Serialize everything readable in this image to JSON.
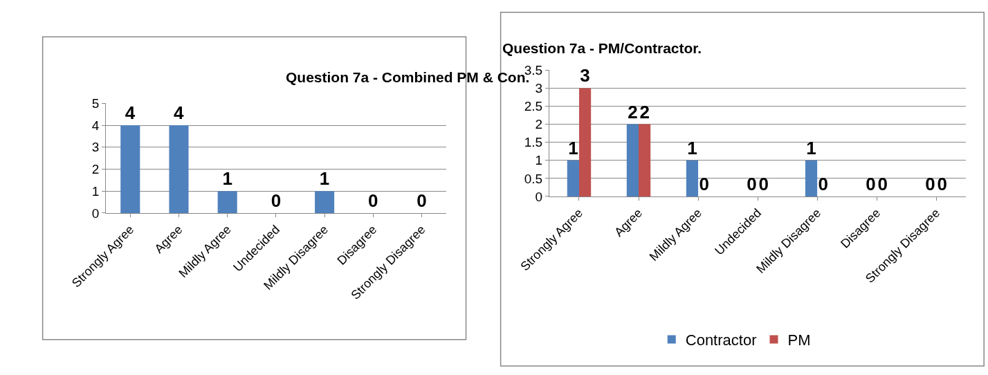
{
  "chart_data": [
    {
      "type": "bar",
      "title": "Question 7a - Combined PM & Con.",
      "categories": [
        "Strongly Agree",
        "Agree",
        "Mildly Agree",
        "Undecided",
        "Mildly Disagree",
        "Disagree",
        "Strongly Disagree"
      ],
      "values": [
        4,
        4,
        1,
        0,
        1,
        0,
        0
      ],
      "color": "#4f81bd",
      "ylim": [
        0,
        5
      ],
      "yticks": [
        0,
        1,
        2,
        3,
        4,
        5
      ],
      "grid": "y",
      "data_labels": true,
      "legend": false
    },
    {
      "type": "bar",
      "title": "Question 7a - PM/Contractor.",
      "categories": [
        "Strongly Agree",
        "Agree",
        "Mildly Agree",
        "Undecided",
        "Mildly Disagree",
        "Disagree",
        "Strongly Disagree"
      ],
      "series": [
        {
          "name": "Contractor",
          "color": "#4f81bd",
          "values": [
            1,
            2,
            1,
            0,
            1,
            0,
            0
          ]
        },
        {
          "name": "PM",
          "color": "#c0504d",
          "values": [
            3,
            2,
            0,
            0,
            0,
            0,
            0
          ]
        }
      ],
      "ylim": [
        0,
        3.5
      ],
      "yticks": [
        0,
        0.5,
        1,
        1.5,
        2,
        2.5,
        3,
        3.5
      ],
      "grid": "y",
      "data_labels": true,
      "legend": "bottom"
    }
  ]
}
